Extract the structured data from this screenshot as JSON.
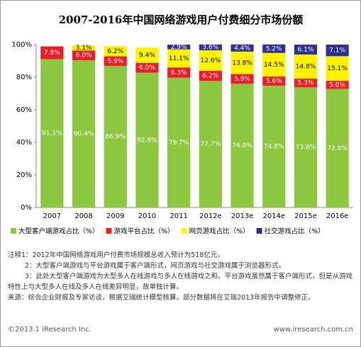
{
  "chart_data": {
    "type": "stacked-bar",
    "title": "2007-2016年中国网络游戏用户付费细分市场份额",
    "categories": [
      "2007",
      "2008",
      "2009",
      "2010",
      "2011",
      "2012e",
      "2013e",
      "2014e",
      "2015e",
      "2016e"
    ],
    "series": [
      {
        "name": "大型客户端游戏占比（%）",
        "color": "#8dc63f",
        "values": [
          91.1,
          90.4,
          86.9,
          82.8,
          79.7,
          77.7,
          76.0,
          74.8,
          73.8,
          72.8
        ],
        "value_labels": [
          "91.1%",
          "90.4%",
          "86.9%",
          "82.8%",
          "79.7%",
          "77.7%",
          "76.0%",
          "74.8%",
          "73.8%",
          "72.8%"
        ]
      },
      {
        "name": "游戏平台占比（%）",
        "color": "#ee1c25",
        "values": [
          7.8,
          6.0,
          5.9,
          6.0,
          6.3,
          6.2,
          5.9,
          5.6,
          5.3,
          5.0
        ],
        "value_labels": [
          "7.8%",
          "6.0%",
          "5.9%",
          "6.0%",
          "6.3%",
          "6.2%",
          "5.9%",
          "5.6%",
          "5.3%",
          "5.0%"
        ]
      },
      {
        "name": "网页游戏占比（%）",
        "color": "#fff200",
        "values": [
          null,
          3.1,
          6.2,
          9.4,
          11.1,
          12.6,
          13.8,
          14.5,
          14.8,
          15.1
        ],
        "value_labels": [
          null,
          "3.1%",
          "6.2%",
          "9.4%",
          "11.1%",
          "12.6%",
          "13.8%",
          "14.5%",
          "14.8%",
          "15.1%"
        ]
      },
      {
        "name": "社交游戏占比（%）",
        "color": "#2e3192",
        "values": [
          null,
          null,
          null,
          null,
          2.9,
          3.6,
          4.4,
          5.2,
          6.1,
          7.1
        ],
        "value_labels": [
          null,
          null,
          null,
          null,
          "2.9%",
          "3.6%",
          "4.4%",
          "5.2%",
          "6.1%",
          "7.1%"
        ]
      }
    ],
    "ylim": [
      0,
      100
    ],
    "yticks": [
      {
        "value": 0,
        "label": "0%"
      },
      {
        "value": 20,
        "label": "20%"
      },
      {
        "value": 40,
        "label": "40%"
      },
      {
        "value": 60,
        "label": "60%"
      },
      {
        "value": 80,
        "label": "80%"
      },
      {
        "value": 100,
        "label": "100%"
      }
    ],
    "legend": "bottom"
  },
  "notes": [
    "注释1：2012年中国网络游戏用户付费市场规模总收入预计为518亿元。",
    "2：大型客户端游戏与平台游戏属于客户端形式，网页游戏与社交游戏属于浏览器形式。",
    "3：此处大型客户端游戏为大型多人在线游戏与多人在线游戏之和。平台游戏虽然属于客户端形式，但是从游戏特性上与大型多人在线及多人在线差异明显，故单独计算。",
    "来源：综合企业财报及专家访谈，根据艾瑞统计模型核算。部分数据将在艾瑞2013年报告中调整修正。"
  ],
  "footer": {
    "left": "©2013.1 iResearch Inc.",
    "right": "www.iresearch.com.cn"
  }
}
